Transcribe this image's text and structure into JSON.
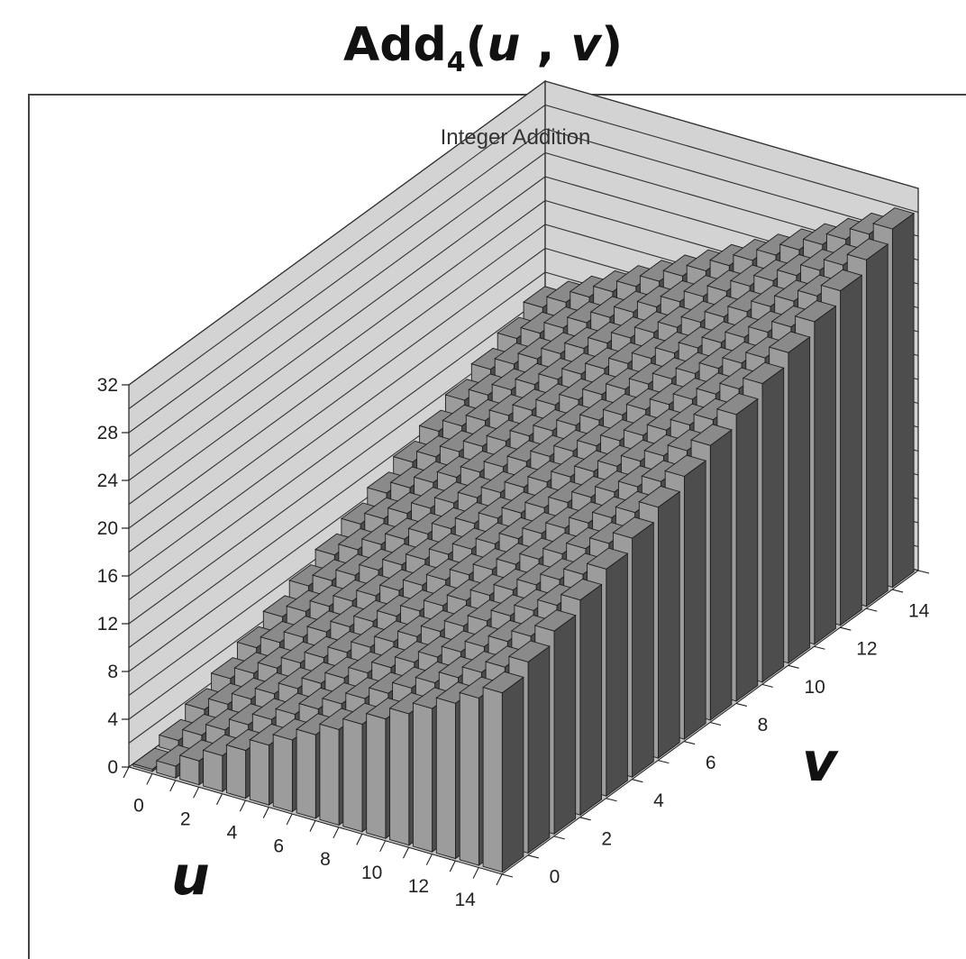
{
  "page": {
    "title_main": "Add",
    "title_sub": "4",
    "title_open": "(",
    "title_u": "u",
    "title_comma": " , ",
    "title_v": "v",
    "title_close": ")"
  },
  "chart_data": {
    "type": "bar",
    "subtype": "3d-column",
    "title": "Integer Addition",
    "x_name": "u",
    "y_name": "v",
    "u": [
      0,
      1,
      2,
      3,
      4,
      5,
      6,
      7,
      8,
      9,
      10,
      11,
      12,
      13,
      14,
      15
    ],
    "v": [
      0,
      1,
      2,
      3,
      4,
      5,
      6,
      7,
      8,
      9,
      10,
      11,
      12,
      13,
      14,
      15
    ],
    "value_rule": "u + v",
    "u_tick_labels": [
      "0",
      "2",
      "4",
      "6",
      "8",
      "10",
      "12",
      "14"
    ],
    "v_tick_labels": [
      "0",
      "2",
      "4",
      "6",
      "8",
      "10",
      "12",
      "14"
    ],
    "z_tick_labels": [
      "0",
      "4",
      "8",
      "12",
      "16",
      "20",
      "24",
      "28",
      "32"
    ],
    "zlim": [
      0,
      32
    ],
    "gridlines_every": 2,
    "grid": true,
    "colors": {
      "wall": "#d3d3d3",
      "floor": "#c4c4c4",
      "grid": "#333333",
      "bar_top": "#8a8a8a",
      "bar_front": "#9c9c9c",
      "bar_side": "#4d4d4d",
      "edge": "#1e1e1e"
    }
  }
}
